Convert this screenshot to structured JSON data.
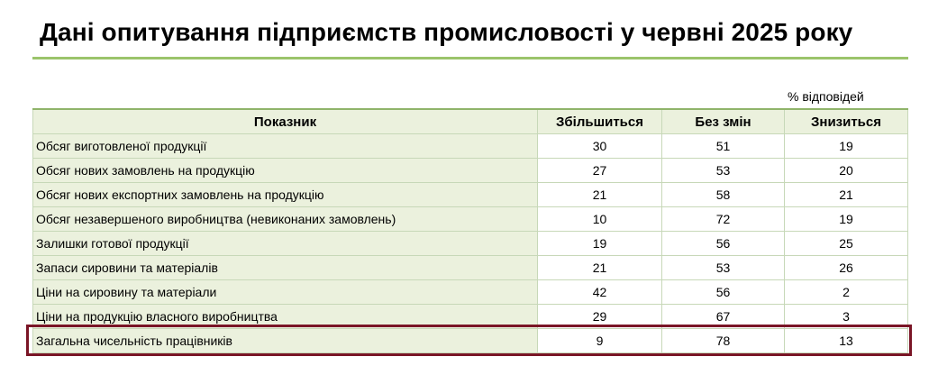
{
  "title": "Дані опитування підприємств промисловості у червні 2025 року",
  "unit": "% відповідей",
  "headers": {
    "indicator": "Показник",
    "increase": "Збільшиться",
    "unchanged": "Без змін",
    "decrease": "Знизиться"
  },
  "rows": [
    {
      "label": "Обсяг виготовленої продукції",
      "increase": "30",
      "unchanged": "51",
      "decrease": "19"
    },
    {
      "label": "Обсяг нових замовлень на продукцію",
      "increase": "27",
      "unchanged": "53",
      "decrease": "20"
    },
    {
      "label": "Обсяг нових експортних замовлень на продукцію",
      "increase": "21",
      "unchanged": "58",
      "decrease": "21"
    },
    {
      "label": "Обсяг незавершеного виробництва (невиконаних замовлень)",
      "increase": "10",
      "unchanged": "72",
      "decrease": "19"
    },
    {
      "label": "Залишки готової продукції",
      "increase": "19",
      "unchanged": "56",
      "decrease": "25"
    },
    {
      "label": "Запаси сировини та матеріалів",
      "increase": "21",
      "unchanged": "53",
      "decrease": "26"
    },
    {
      "label": "Ціни на сировину та матеріали",
      "increase": "42",
      "unchanged": "56",
      "decrease": "2"
    },
    {
      "label": "Ціни на продукцію власного виробництва",
      "increase": "29",
      "unchanged": "67",
      "decrease": "3"
    },
    {
      "label": "Загальна чисельність працівників",
      "increase": "9",
      "unchanged": "78",
      "decrease": "13"
    }
  ],
  "colors": {
    "accent_rule": "#9bc46b",
    "label_fill": "#ebf1dd",
    "highlight_border": "#7a1526"
  }
}
